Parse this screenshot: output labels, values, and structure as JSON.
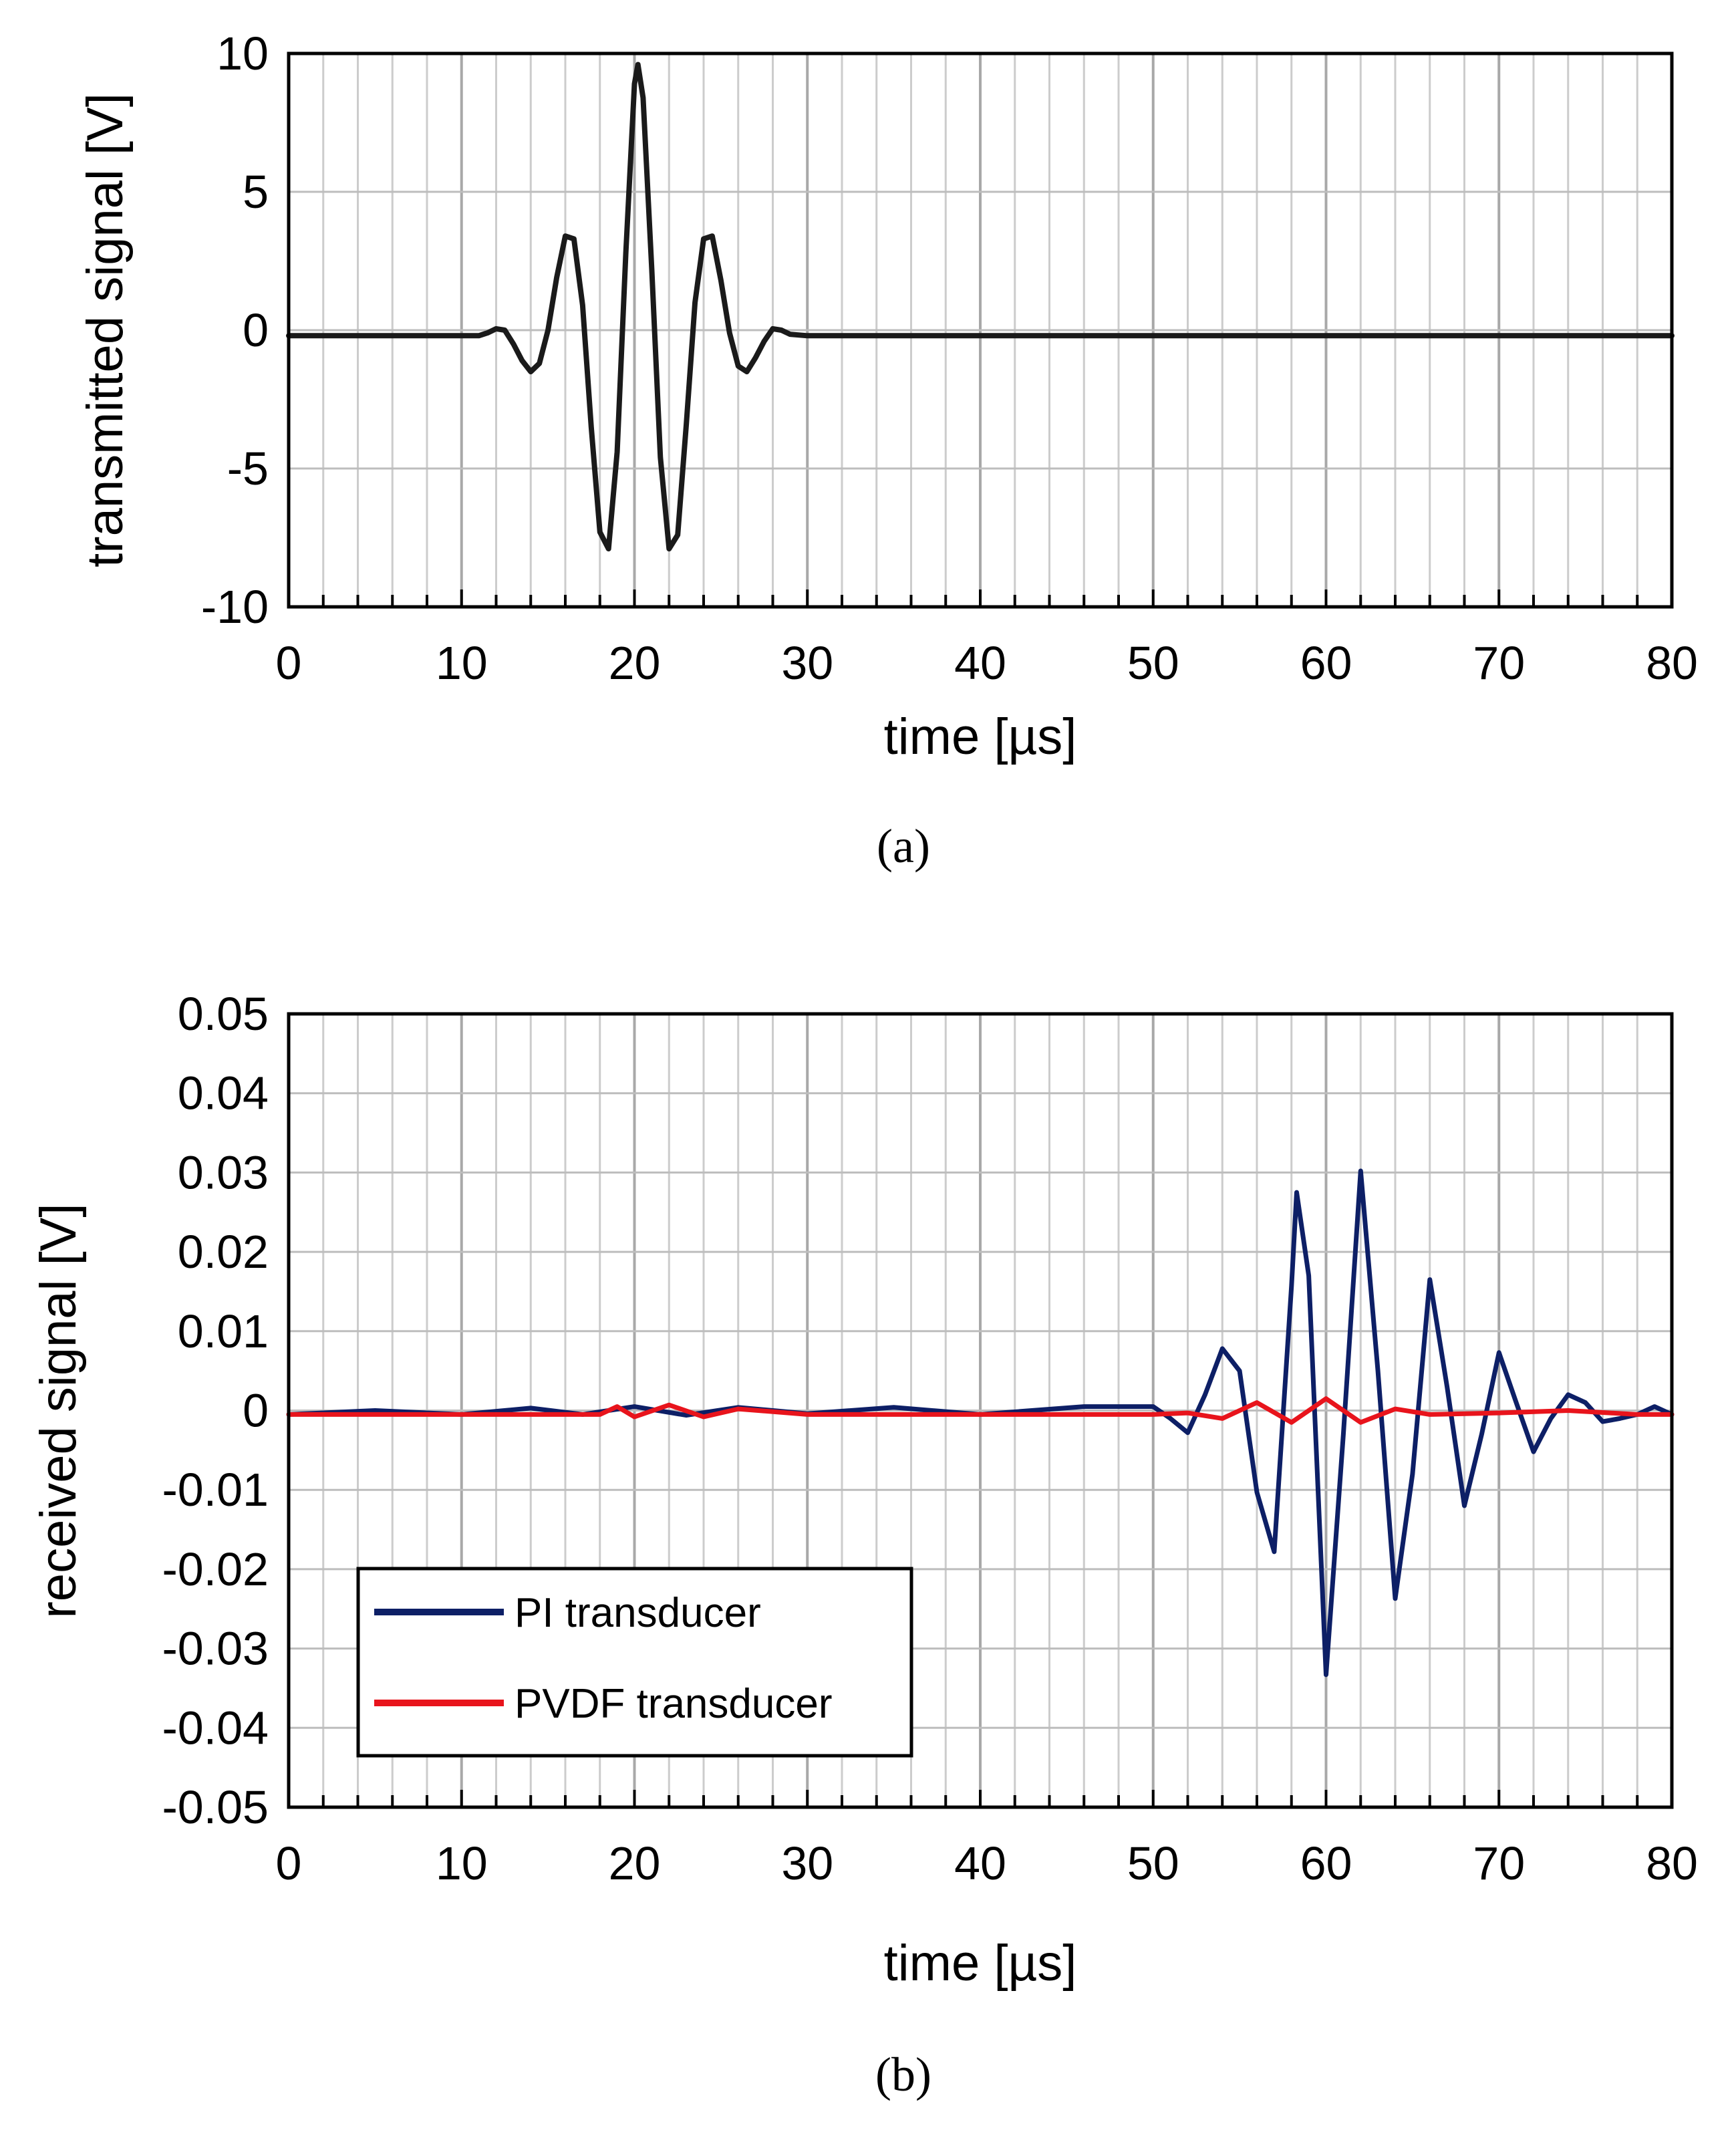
{
  "chart_data": [
    {
      "panel": "(a)",
      "type": "line",
      "xlabel": "time [µs]",
      "ylabel": "transmitted signal [V]",
      "xlim": [
        0,
        80
      ],
      "ylim": [
        -10,
        10
      ],
      "x_ticks": [
        "0",
        "10",
        "20",
        "30",
        "40",
        "50",
        "60",
        "70",
        "80"
      ],
      "y_ticks": [
        "10",
        "5",
        "0",
        "-5",
        "-10"
      ],
      "grid": true,
      "series": [
        {
          "color": "#1a1a1a",
          "points": [
            [
              0,
              -0.2
            ],
            [
              11,
              -0.2
            ],
            [
              11.5,
              -0.1
            ],
            [
              12,
              0.05
            ],
            [
              12.5,
              0.0
            ],
            [
              13,
              -0.5
            ],
            [
              13.5,
              -1.1
            ],
            [
              14,
              -1.5
            ],
            [
              14.5,
              -1.2
            ],
            [
              15,
              0.0
            ],
            [
              15.5,
              1.9
            ],
            [
              16,
              3.4
            ],
            [
              16.5,
              3.3
            ],
            [
              17,
              0.9
            ],
            [
              17.5,
              -3.5
            ],
            [
              18,
              -7.3
            ],
            [
              18.5,
              -7.9
            ],
            [
              19,
              -4.4
            ],
            [
              19.5,
              2.8
            ],
            [
              20,
              8.9
            ],
            [
              20.2,
              9.6
            ],
            [
              20.5,
              8.4
            ],
            [
              21,
              2.2
            ],
            [
              21.5,
              -4.6
            ],
            [
              22,
              -7.9
            ],
            [
              22.5,
              -7.4
            ],
            [
              23,
              -3.4
            ],
            [
              23.5,
              1.0
            ],
            [
              24,
              3.3
            ],
            [
              24.5,
              3.4
            ],
            [
              25,
              1.8
            ],
            [
              25.5,
              -0.1
            ],
            [
              26,
              -1.3
            ],
            [
              26.5,
              -1.5
            ],
            [
              27,
              -1.0
            ],
            [
              27.5,
              -0.4
            ],
            [
              28,
              0.05
            ],
            [
              28.5,
              0.0
            ],
            [
              29,
              -0.15
            ],
            [
              30,
              -0.2
            ],
            [
              80,
              -0.2
            ]
          ]
        }
      ]
    },
    {
      "panel": "(b)",
      "type": "line",
      "xlabel": "time [µs]",
      "ylabel": "received signal [V]",
      "xlim": [
        0,
        80
      ],
      "ylim": [
        -0.05,
        0.05
      ],
      "x_ticks": [
        "0",
        "10",
        "20",
        "30",
        "40",
        "50",
        "60",
        "70",
        "80"
      ],
      "y_ticks": [
        "0.05",
        "0.04",
        "0.03",
        "0.02",
        "0.01",
        "0",
        "-0.01",
        "-0.02",
        "-0.03",
        "-0.04",
        "-0.05"
      ],
      "grid": true,
      "legend_position": "lower-left",
      "series": [
        {
          "name": "PI transducer",
          "color": "#0d1f66",
          "points": [
            [
              0,
              -0.0005
            ],
            [
              5,
              0.0
            ],
            [
              10,
              -0.0005
            ],
            [
              14,
              0.0003
            ],
            [
              17,
              -0.0005
            ],
            [
              20,
              0.0005
            ],
            [
              23,
              -0.0006
            ],
            [
              26,
              0.0004
            ],
            [
              30,
              -0.0004
            ],
            [
              35,
              0.0004
            ],
            [
              40,
              -0.0005
            ],
            [
              46,
              0.0005
            ],
            [
              50,
              0.0005
            ],
            [
              51,
              -0.001
            ],
            [
              52,
              -0.0028
            ],
            [
              53,
              0.002
            ],
            [
              54,
              0.0078
            ],
            [
              55,
              0.005
            ],
            [
              56,
              -0.0103
            ],
            [
              57,
              -0.0178
            ],
            [
              58,
              0.0157
            ],
            [
              58.3,
              0.0275
            ],
            [
              59,
              0.017
            ],
            [
              60,
              -0.0333
            ],
            [
              61,
              -0.003
            ],
            [
              62,
              0.0302
            ],
            [
              63,
              0.005
            ],
            [
              64,
              -0.0237
            ],
            [
              65,
              -0.008
            ],
            [
              66,
              0.0165
            ],
            [
              67,
              0.003
            ],
            [
              68,
              -0.012
            ],
            [
              69,
              -0.003
            ],
            [
              70,
              0.0073
            ],
            [
              71,
              0.001
            ],
            [
              72,
              -0.0052
            ],
            [
              73,
              -0.001
            ],
            [
              74,
              0.002
            ],
            [
              75,
              0.001
            ],
            [
              76,
              -0.0014
            ],
            [
              77,
              -0.001
            ],
            [
              78,
              -0.0005
            ],
            [
              79,
              0.0005
            ],
            [
              80,
              -0.0005
            ]
          ]
        },
        {
          "name": "PVDF transducer",
          "color": "#e8141c",
          "points": [
            [
              0,
              -0.0005
            ],
            [
              10,
              -0.0005
            ],
            [
              18,
              -0.0005
            ],
            [
              19,
              0.0005
            ],
            [
              20,
              -0.0008
            ],
            [
              22,
              0.0007
            ],
            [
              24,
              -0.0008
            ],
            [
              26,
              0.0002
            ],
            [
              30,
              -0.0005
            ],
            [
              40,
              -0.0005
            ],
            [
              50,
              -0.0005
            ],
            [
              52,
              -0.0003
            ],
            [
              54,
              -0.001
            ],
            [
              56,
              0.001
            ],
            [
              58,
              -0.0015
            ],
            [
              60,
              0.0015
            ],
            [
              62,
              -0.0015
            ],
            [
              64,
              0.0002
            ],
            [
              66,
              -0.0005
            ],
            [
              70,
              -0.0003
            ],
            [
              74,
              0.0
            ],
            [
              78,
              -0.0005
            ],
            [
              80,
              -0.0005
            ]
          ]
        }
      ]
    }
  ]
}
